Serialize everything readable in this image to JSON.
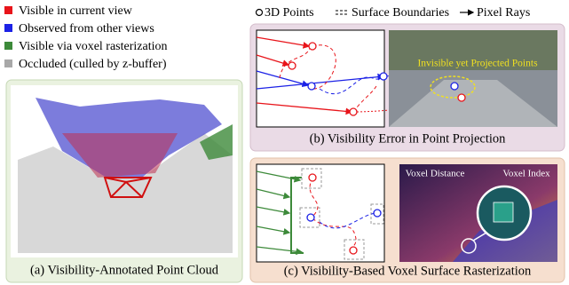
{
  "legend": {
    "items": [
      {
        "label": "Visible in current view",
        "color": "#e8141a"
      },
      {
        "label": "Observed from other views",
        "color": "#1c22e6"
      },
      {
        "label": "Visible via voxel rasterization",
        "color": "#3d8a3a"
      },
      {
        "label": "Occluded (culled by z-buffer)",
        "color": "#a8a8a8"
      }
    ]
  },
  "symbol_legend": {
    "points": "3D Points",
    "boundaries": "Surface Boundaries",
    "rays": "Pixel Rays"
  },
  "panels": [
    {
      "caption": "(a) Visibility-Annotated Point Cloud"
    },
    {
      "caption": "(b) Visibility Error in Point Projection",
      "annotation": "Invisible yet Projected Points"
    },
    {
      "caption": "(c) Visibility-Based Voxel Surface Rasterization",
      "labels": [
        "Voxel Distance",
        "Voxel Index"
      ]
    }
  ]
}
